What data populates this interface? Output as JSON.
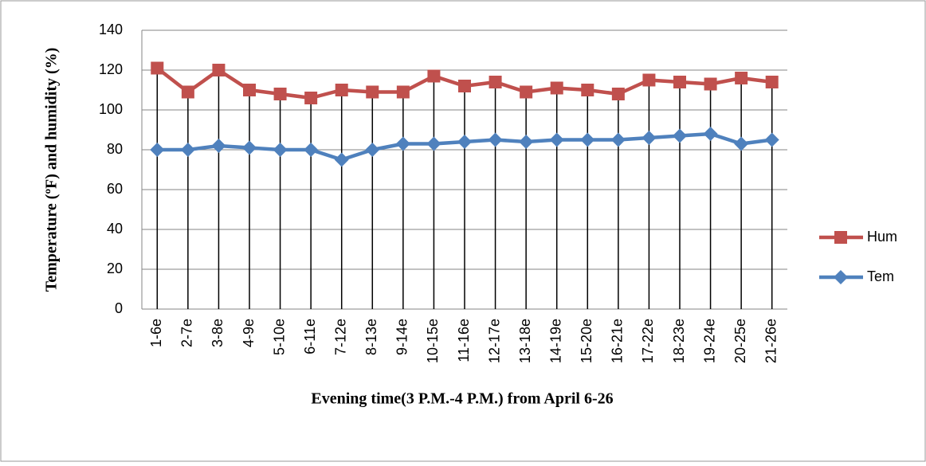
{
  "chart_data": {
    "type": "line",
    "y_label": "Temperature (ºF) and humidity (%)",
    "x_label": "Evening time(3 P.M.-4 P.M.) from April 6-26",
    "categories": [
      "1-6e",
      "2-7e",
      "3-8e",
      "4-9e",
      "5-10e",
      "6-11e",
      "7-12e",
      "8-13e",
      "9-14e",
      "10-15e",
      "11-16e",
      "12-17e",
      "13-18e",
      "14-19e",
      "15-20e",
      "16-21e",
      "17-22e",
      "18-23e",
      "19-24e",
      "20-25e",
      "21-26e"
    ],
    "series": [
      {
        "name": "Hum",
        "color": "#c0504d",
        "marker": "square",
        "values": [
          121,
          109,
          120,
          110,
          108,
          106,
          110,
          109,
          109,
          117,
          112,
          114,
          109,
          111,
          110,
          108,
          115,
          114,
          113,
          116,
          114
        ]
      },
      {
        "name": "Tem",
        "color": "#4f81bd",
        "marker": "diamond",
        "values": [
          80,
          80,
          82,
          81,
          80,
          80,
          75,
          80,
          83,
          83,
          84,
          85,
          84,
          85,
          85,
          85,
          86,
          87,
          88,
          83,
          85
        ]
      }
    ],
    "ylim": [
      0,
      140
    ],
    "yticks": [
      0,
      20,
      40,
      60,
      80,
      100,
      120,
      140
    ],
    "grid": true,
    "drop_lines": true,
    "legend": "right"
  }
}
